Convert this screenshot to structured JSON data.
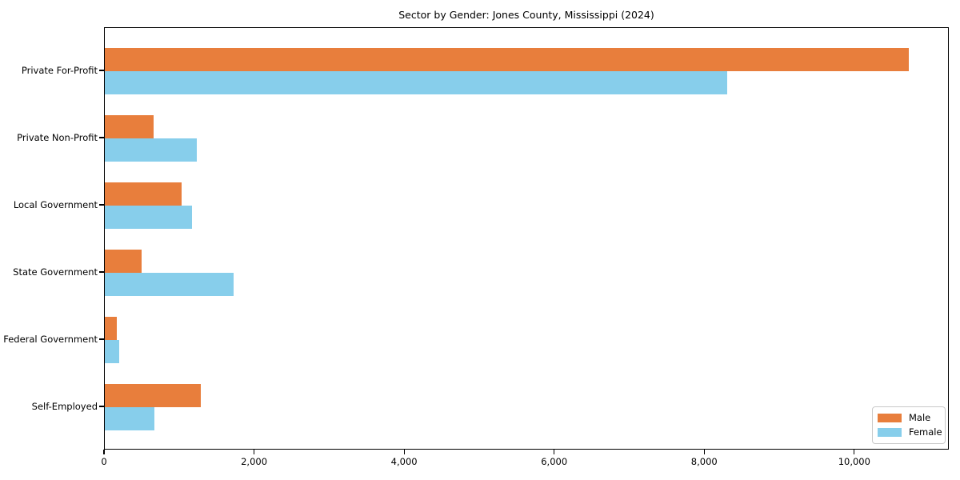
{
  "chart_data": {
    "type": "bar",
    "orientation": "horizontal",
    "title": "Sector by Gender: Jones County, Mississippi (2024)",
    "categories": [
      "Private For-Profit",
      "Private Non-Profit",
      "Local Government",
      "State Government",
      "Federal Government",
      "Self-Employed"
    ],
    "series": [
      {
        "name": "Male",
        "color": "#e87e3c",
        "values": [
          10720,
          650,
          1025,
          490,
          155,
          1280
        ]
      },
      {
        "name": "Female",
        "color": "#87ceeb",
        "values": [
          8300,
          1225,
          1165,
          1720,
          195,
          660
        ]
      }
    ],
    "xlabel": "",
    "ylabel": "",
    "xlim": [
      0,
      11260
    ],
    "xticks": [
      0,
      2000,
      4000,
      6000,
      8000,
      10000
    ],
    "xtick_labels": [
      "0",
      "2,000",
      "4,000",
      "6,000",
      "8,000",
      "10,000"
    ],
    "legend_position": "lower-right",
    "grid": false,
    "colors": {
      "spine": "#000000",
      "background": "#ffffff",
      "legend_border": "#c9c9c9"
    }
  }
}
